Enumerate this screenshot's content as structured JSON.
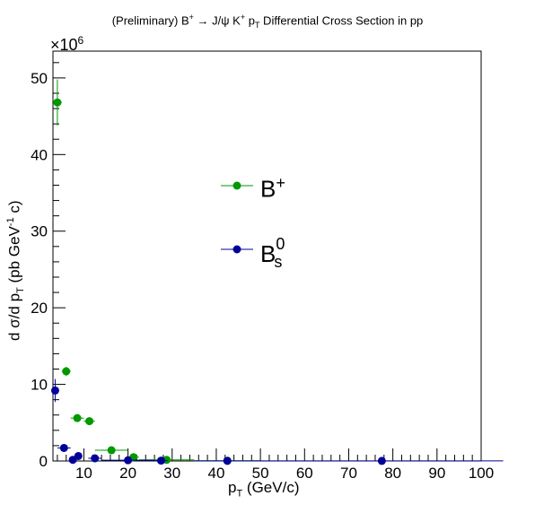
{
  "chart_data": {
    "type": "scatter",
    "title": {
      "prefix": "(Preliminary) B",
      "prefix_sup": "+",
      "mid": " → J/ψ K",
      "mid_sup": "+",
      "p": " p",
      "p_sub": "T",
      "suffix": " Differential Cross Section in pp"
    },
    "xlabel": {
      "main": "p",
      "sub": "T",
      "unit": " (GeV/c)"
    },
    "ylabel": {
      "main": "d σ/d p",
      "sub": "T",
      "unit_a": " (pb GeV",
      "unit_sup": "-1",
      "unit_b": " c)"
    },
    "y_exponent": {
      "base": "×10",
      "power": "6"
    },
    "xlim": [
      3,
      100
    ],
    "ylim": [
      0,
      53.5
    ],
    "y_scale_factor": 1000000,
    "x_ticks": [
      10,
      20,
      30,
      40,
      50,
      60,
      70,
      80,
      90,
      100
    ],
    "y_ticks": [
      0,
      10,
      20,
      30,
      40,
      50
    ],
    "grid": false,
    "legend_placement": "center",
    "series": [
      {
        "name": "B",
        "name_sup": "+",
        "name_sub": "",
        "color": "#009900",
        "points": [
          {
            "x": 4.0,
            "xerr": 1.0,
            "y": 46.8,
            "yerr": 3.0
          },
          {
            "x": 6.0,
            "xerr": 1.0,
            "y": 11.7,
            "yerr": 0.6
          },
          {
            "x": 8.5,
            "xerr": 1.5,
            "y": 5.6,
            "yerr": 0.25
          },
          {
            "x": 11.25,
            "xerr": 1.25,
            "y": 5.2,
            "yerr": 0.25
          },
          {
            "x": 16.25,
            "xerr": 3.75,
            "y": 1.4,
            "yerr": 0.1
          },
          {
            "x": 21.25,
            "xerr": 1.25,
            "y": 0.5,
            "yerr": 0.05
          },
          {
            "x": 28.75,
            "xerr": 6.25,
            "y": 0.15,
            "yerr": 0.02
          },
          {
            "x": 42.5,
            "xerr": 7.5,
            "y": 0.03,
            "yerr": 0.01
          }
        ]
      },
      {
        "name": "B",
        "name_sup": "0",
        "name_sub": "s",
        "color": "#000099",
        "points": [
          {
            "x": 3.5,
            "xerr": 0.5,
            "y": 9.2,
            "yerr": 1.5
          },
          {
            "x": 5.5,
            "xerr": 1.5,
            "y": 1.7,
            "yerr": 0.2
          },
          {
            "x": 7.5,
            "xerr": 0.5,
            "y": 0.15,
            "yerr": 0.05
          },
          {
            "x": 8.75,
            "xerr": 0.75,
            "y": 0.65,
            "yerr": 0.1
          },
          {
            "x": 12.5,
            "xerr": 1.5,
            "y": 0.35,
            "yerr": 0.05
          },
          {
            "x": 20.0,
            "xerr": 6.0,
            "y": 0.1,
            "yerr": 0.02
          },
          {
            "x": 27.5,
            "xerr": 1.5,
            "y": 0.05,
            "yerr": 0.01
          },
          {
            "x": 42.5,
            "xerr": 7.5,
            "y": 0.02,
            "yerr": 0.01
          },
          {
            "x": 77.5,
            "xerr": 27.5,
            "y": 0.01,
            "yerr": 0.005
          }
        ]
      }
    ]
  }
}
